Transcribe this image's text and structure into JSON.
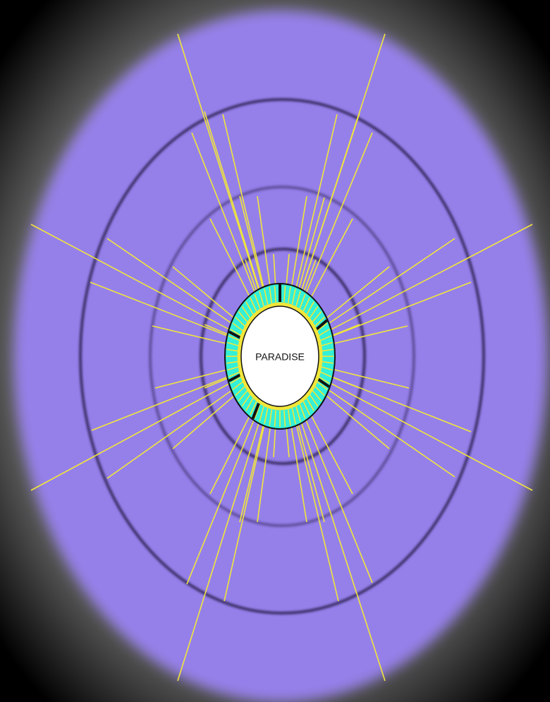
{
  "center": {
    "label": "PARADISE"
  }
}
